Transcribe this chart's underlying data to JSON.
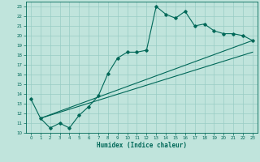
{
  "xlabel": "Humidex (Indice chaleur)",
  "bg_color": "#c0e4dc",
  "grid_color": "#98ccc4",
  "line_color": "#006858",
  "xlim": [
    -0.5,
    23.5
  ],
  "ylim": [
    10,
    23.5
  ],
  "xticks": [
    0,
    1,
    2,
    3,
    4,
    5,
    6,
    7,
    8,
    9,
    10,
    11,
    12,
    13,
    14,
    15,
    16,
    17,
    18,
    19,
    20,
    21,
    22,
    23
  ],
  "yticks": [
    10,
    11,
    12,
    13,
    14,
    15,
    16,
    17,
    18,
    19,
    20,
    21,
    22,
    23
  ],
  "line1_x": [
    0,
    1,
    2,
    3,
    4,
    5,
    6,
    7,
    8,
    9,
    10,
    11,
    12,
    13,
    14,
    15,
    16,
    17,
    18,
    19,
    20,
    21,
    22,
    23
  ],
  "line1_y": [
    13.5,
    11.5,
    10.5,
    11.0,
    10.5,
    11.8,
    12.7,
    13.8,
    16.1,
    17.7,
    18.3,
    18.3,
    18.5,
    23.0,
    22.2,
    21.8,
    22.5,
    21.0,
    21.2,
    20.5,
    20.2,
    20.2,
    20.0,
    19.5
  ],
  "line2_x": [
    1,
    23
  ],
  "line2_y": [
    11.5,
    19.5
  ],
  "line3_x": [
    1,
    23
  ],
  "line3_y": [
    11.5,
    18.3
  ]
}
